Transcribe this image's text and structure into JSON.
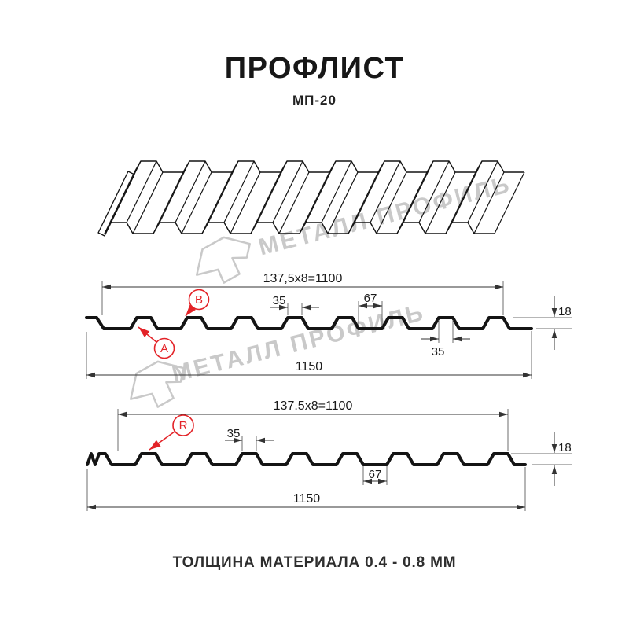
{
  "header": {
    "title": "ПРОФЛИСТ",
    "subtitle": "МП-20"
  },
  "watermark": {
    "text": "МЕТАЛЛ ПРОФИЛЬ",
    "color": "#c9c9c9"
  },
  "colors": {
    "line": "#141414",
    "dim_line": "#333333",
    "accent_red": "#e32328",
    "background": "#ffffff"
  },
  "profile_top": {
    "coverage_width_label": "137,5x8=1100",
    "rib_top_label": "35",
    "rib_base_label": "67",
    "underside_label": "35",
    "height_label": "18",
    "full_width_label": "1150",
    "point_a_label": "A",
    "point_b_label": "B"
  },
  "profile_bottom": {
    "coverage_width_label": "137.5x8=1100",
    "rib_top_label": "35",
    "valley_label": "67",
    "height_label": "18",
    "full_width_label": "1150",
    "point_r_label": "R"
  },
  "footer": {
    "note": "ТОЛЩИНА МАТЕРИАЛА 0.4 - 0.8 ММ"
  }
}
